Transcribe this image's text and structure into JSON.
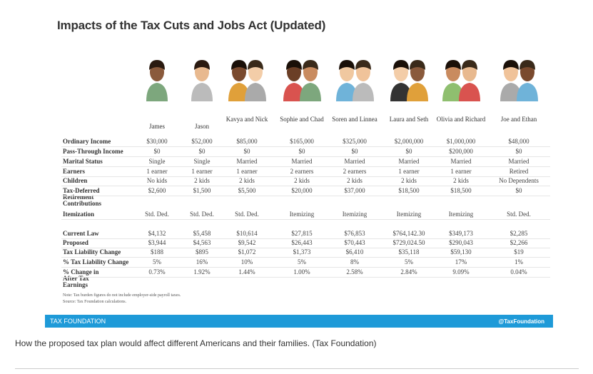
{
  "header": {
    "title": "Impacts of the Tax Cuts and Jobs Act (Updated)"
  },
  "people": [
    "James",
    "Jason",
    "Kavya and Nick",
    "Sophie and Chad",
    "Soren and Linnea",
    "Laura and Seth",
    "Olivia and Richard",
    "Joe and Ethan"
  ],
  "table": {
    "sections": [
      {
        "rows": [
          {
            "label": "Ordinary Income",
            "values": [
              "$30,000",
              "$52,000",
              "$85,000",
              "$165,000",
              "$325,000",
              "$2,000,000",
              "$1,000,000",
              "$48,000"
            ]
          },
          {
            "label": "Pass-Through Income",
            "values": [
              "$0",
              "$0",
              "$0",
              "$0",
              "$0",
              "$0",
              "$200,000",
              "$0"
            ]
          },
          {
            "label": "Marital Status",
            "values": [
              "Single",
              "Single",
              "Married",
              "Married",
              "Married",
              "Married",
              "Married",
              "Married"
            ]
          },
          {
            "label": "Earners",
            "values": [
              "1 earner",
              "1 earner",
              "1 earner",
              "2 earners",
              "2 earners",
              "1 earner",
              "1 earner",
              "Retired"
            ]
          },
          {
            "label": "Children",
            "values": [
              "No kids",
              "2 kids",
              "2 kids",
              "2 kids",
              "2 kids",
              "2 kids",
              "2 kids",
              "No Dependents"
            ]
          },
          {
            "label": "Tax-Deferred Retirement Contributions",
            "values": [
              "$2,600",
              "$1,500",
              "$5,500",
              "$20,000",
              "$37,000",
              "$18,500",
              "$18,500",
              "$0"
            ]
          },
          {
            "label": "Itemization",
            "values": [
              "Std. Ded.",
              "Std. Ded.",
              "Std. Ded.",
              "Itemizing",
              "Itemizing",
              "Itemizing",
              "Itemizing",
              "Std. Ded."
            ]
          }
        ]
      },
      {
        "rows": [
          {
            "label": "Current Law",
            "values": [
              "$4,132",
              "$5,458",
              "$10,614",
              "$27,815",
              "$76,853",
              "$764,142.30",
              "$349,173",
              "$2,285"
            ]
          },
          {
            "label": "Proposed",
            "values": [
              "$3,944",
              "$4,563",
              "$9,542",
              "$26,443",
              "$70,443",
              "$729,024.50",
              "$290,043",
              "$2,266"
            ]
          },
          {
            "label": "Tax Liability Change",
            "values": [
              "$188",
              "$895",
              "$1,072",
              "$1,373",
              "$6,410",
              "$35,118",
              "$59,130",
              "$19"
            ]
          },
          {
            "label": "% Tax Liability Change",
            "values": [
              "5%",
              "16%",
              "10%",
              "5%",
              "8%",
              "5%",
              "17%",
              "1%"
            ]
          },
          {
            "label": "% Change in After Tax Earnings",
            "values": [
              "0.73%",
              "1.92%",
              "1.44%",
              "1.00%",
              "2.58%",
              "2.84%",
              "9.09%",
              "0.04%"
            ]
          }
        ]
      }
    ]
  },
  "notes": [
    "Note: Tax burden figures do not include employer-side payroll taxes.",
    "Source: Tax Foundation calculations."
  ],
  "footer": {
    "brand": "TAX FOUNDATION",
    "handle": "@TaxFoundation"
  },
  "caption": "How the proposed tax plan would affect different Americans and their families.  (Tax Foundation)"
}
